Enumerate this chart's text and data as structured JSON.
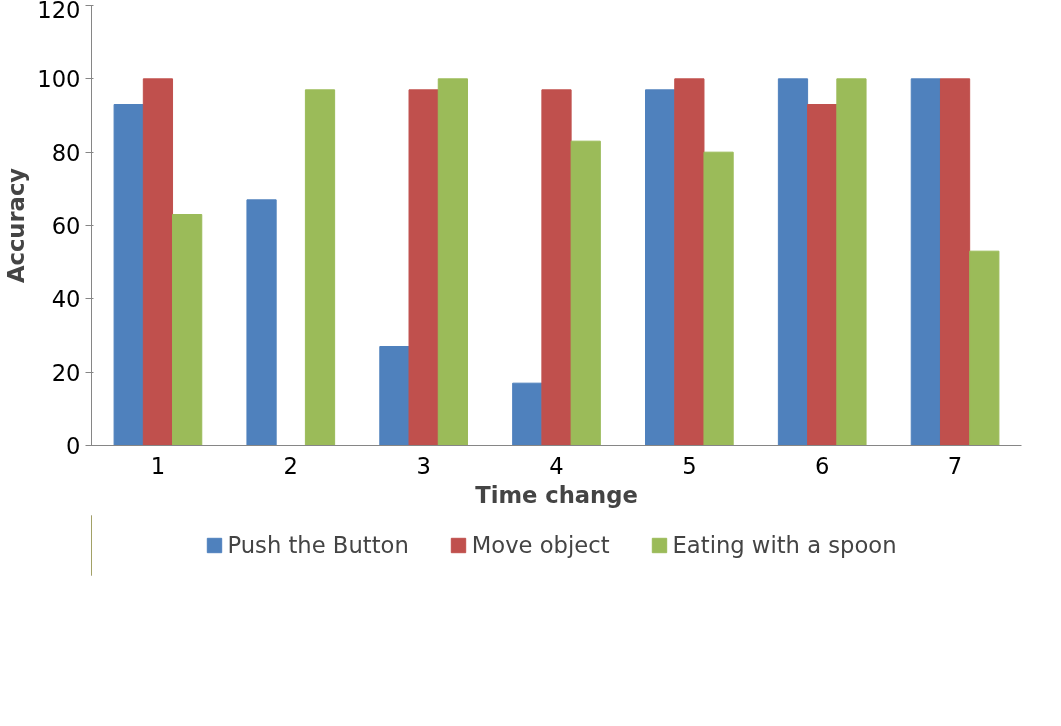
{
  "chart_data": {
    "type": "bar",
    "xlabel": "Time change",
    "ylabel": "Accuracy",
    "categories": [
      "1",
      "2",
      "3",
      "4",
      "5",
      "6",
      "7"
    ],
    "series": [
      {
        "name": "Push the Button",
        "color": "#4f81bd",
        "values": [
          93,
          67,
          27,
          17,
          97,
          100,
          100
        ]
      },
      {
        "name": "Move object",
        "color": "#c0504d",
        "values": [
          100,
          0,
          97,
          97,
          100,
          93,
          100
        ]
      },
      {
        "name": "Eating with a spoon",
        "color": "#9bbb59",
        "values": [
          63,
          97,
          100,
          83,
          80,
          100,
          53
        ]
      }
    ],
    "ylim": [
      0,
      120
    ],
    "yticks": [
      0,
      20,
      40,
      60,
      80,
      100,
      120
    ],
    "grid": false,
    "legend": "bottom"
  }
}
